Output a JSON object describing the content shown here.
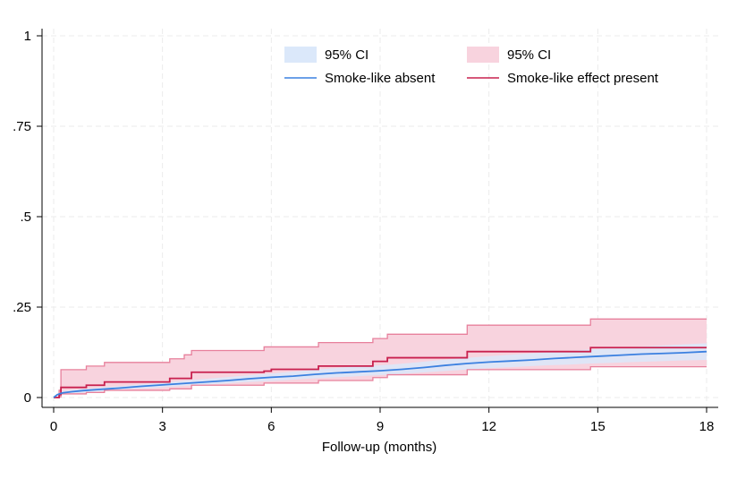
{
  "chart_data": {
    "type": "line",
    "title": "",
    "xlabel": "Follow-up (months)",
    "ylabel": "",
    "xlim": [
      0,
      18
    ],
    "ylim": [
      0,
      1
    ],
    "grid": true,
    "legend_position": "top-right",
    "x_ticks": [
      0,
      3,
      6,
      9,
      12,
      15,
      18
    ],
    "x_tick_labels": [
      "0",
      "3",
      "6",
      "9",
      "12",
      "15",
      "18"
    ],
    "y_ticks": [
      0,
      0.25,
      0.5,
      0.75,
      1
    ],
    "y_tick_labels": [
      "0",
      ".25",
      ".5",
      ".75",
      "1"
    ],
    "legend": [
      {
        "label": "95% CI",
        "kind": "band",
        "series": 0
      },
      {
        "label": "95% CI",
        "kind": "band",
        "series": 1
      },
      {
        "label": "Smoke-like absent",
        "kind": "line",
        "series": 0
      },
      {
        "label": "Smoke-like effect present",
        "kind": "line",
        "series": 1
      }
    ],
    "series": [
      {
        "name": "Smoke-like absent",
        "line_color": "#3b80e0",
        "band_color": "#dbe8fa",
        "points": [
          [
            0.0,
            0.0
          ],
          [
            0.1,
            0.008
          ],
          [
            0.25,
            0.013
          ],
          [
            0.5,
            0.016
          ],
          [
            0.8,
            0.019
          ],
          [
            1.2,
            0.022
          ],
          [
            1.8,
            0.026
          ],
          [
            2.4,
            0.031
          ],
          [
            3.0,
            0.035
          ],
          [
            3.6,
            0.039
          ],
          [
            4.2,
            0.043
          ],
          [
            4.8,
            0.047
          ],
          [
            5.4,
            0.052
          ],
          [
            6.0,
            0.056
          ],
          [
            6.6,
            0.059
          ],
          [
            7.2,
            0.064
          ],
          [
            7.8,
            0.068
          ],
          [
            8.4,
            0.071
          ],
          [
            9.0,
            0.074
          ],
          [
            9.6,
            0.078
          ],
          [
            10.2,
            0.083
          ],
          [
            10.8,
            0.089
          ],
          [
            11.4,
            0.094
          ],
          [
            12.0,
            0.098
          ],
          [
            12.6,
            0.101
          ],
          [
            13.2,
            0.104
          ],
          [
            13.8,
            0.108
          ],
          [
            14.4,
            0.111
          ],
          [
            15.0,
            0.114
          ],
          [
            15.6,
            0.117
          ],
          [
            16.2,
            0.12
          ],
          [
            16.8,
            0.122
          ],
          [
            17.4,
            0.124
          ],
          [
            18.0,
            0.127
          ]
        ],
        "ci_lower": [
          [
            0.0,
            0.0
          ],
          [
            0.2,
            0.009
          ],
          [
            0.6,
            0.012
          ],
          [
            1.0,
            0.015
          ],
          [
            1.6,
            0.019
          ],
          [
            2.2,
            0.024
          ],
          [
            2.8,
            0.027
          ],
          [
            3.4,
            0.031
          ],
          [
            4.0,
            0.035
          ],
          [
            4.6,
            0.038
          ],
          [
            5.2,
            0.042
          ],
          [
            5.8,
            0.045
          ],
          [
            6.4,
            0.048
          ],
          [
            7.0,
            0.052
          ],
          [
            7.6,
            0.055
          ],
          [
            8.2,
            0.058
          ],
          [
            8.8,
            0.061
          ],
          [
            9.4,
            0.064
          ],
          [
            10.0,
            0.068
          ],
          [
            10.6,
            0.072
          ],
          [
            11.2,
            0.076
          ],
          [
            11.8,
            0.08
          ],
          [
            12.4,
            0.083
          ],
          [
            13.0,
            0.086
          ],
          [
            13.6,
            0.089
          ],
          [
            14.2,
            0.091
          ],
          [
            14.8,
            0.094
          ],
          [
            15.4,
            0.096
          ],
          [
            16.0,
            0.098
          ],
          [
            16.6,
            0.1
          ],
          [
            17.2,
            0.102
          ],
          [
            18.0,
            0.104
          ]
        ],
        "ci_upper": [
          [
            0.0,
            0.0
          ],
          [
            0.2,
            0.018
          ],
          [
            0.6,
            0.022
          ],
          [
            1.0,
            0.025
          ],
          [
            1.6,
            0.03
          ],
          [
            2.2,
            0.035
          ],
          [
            2.8,
            0.04
          ],
          [
            3.4,
            0.045
          ],
          [
            4.0,
            0.05
          ],
          [
            4.6,
            0.055
          ],
          [
            5.2,
            0.06
          ],
          [
            5.8,
            0.065
          ],
          [
            6.4,
            0.07
          ],
          [
            7.0,
            0.075
          ],
          [
            7.6,
            0.08
          ],
          [
            8.2,
            0.085
          ],
          [
            8.8,
            0.088
          ],
          [
            9.4,
            0.092
          ],
          [
            10.0,
            0.097
          ],
          [
            10.6,
            0.103
          ],
          [
            11.2,
            0.108
          ],
          [
            11.8,
            0.113
          ],
          [
            12.4,
            0.117
          ],
          [
            13.0,
            0.121
          ],
          [
            13.6,
            0.125
          ],
          [
            14.2,
            0.129
          ],
          [
            14.8,
            0.133
          ],
          [
            15.4,
            0.137
          ],
          [
            16.0,
            0.14
          ],
          [
            16.6,
            0.143
          ],
          [
            17.2,
            0.146
          ],
          [
            18.0,
            0.15
          ]
        ]
      },
      {
        "name": "Smoke-like effect present",
        "line_color": "#c8204e",
        "band_color": "#f8d3de",
        "band_edge_color": "#e7809c",
        "steps": [
          [
            0.0,
            0.0
          ],
          [
            0.15,
            0.008
          ],
          [
            0.2,
            0.028
          ],
          [
            0.9,
            0.034
          ],
          [
            1.4,
            0.043
          ],
          [
            3.2,
            0.053
          ],
          [
            3.8,
            0.07
          ],
          [
            5.8,
            0.073
          ],
          [
            6.0,
            0.078
          ],
          [
            7.3,
            0.087
          ],
          [
            8.8,
            0.1
          ],
          [
            9.2,
            0.11
          ],
          [
            11.4,
            0.127
          ],
          [
            14.8,
            0.138
          ],
          [
            18.0,
            0.138
          ]
        ],
        "ci_upper_steps": [
          [
            0.0,
            0.0
          ],
          [
            0.15,
            0.02
          ],
          [
            0.2,
            0.077
          ],
          [
            0.9,
            0.087
          ],
          [
            1.4,
            0.097
          ],
          [
            3.2,
            0.107
          ],
          [
            3.6,
            0.118
          ],
          [
            3.8,
            0.13
          ],
          [
            5.8,
            0.14
          ],
          [
            7.3,
            0.152
          ],
          [
            8.8,
            0.163
          ],
          [
            9.2,
            0.175
          ],
          [
            11.4,
            0.2
          ],
          [
            14.8,
            0.217
          ],
          [
            18.0,
            0.217
          ]
        ],
        "ci_lower_steps": [
          [
            0.0,
            0.0
          ],
          [
            0.15,
            0.002
          ],
          [
            0.2,
            0.01
          ],
          [
            0.9,
            0.014
          ],
          [
            1.4,
            0.02
          ],
          [
            3.2,
            0.024
          ],
          [
            3.8,
            0.034
          ],
          [
            5.8,
            0.04
          ],
          [
            7.3,
            0.047
          ],
          [
            8.8,
            0.055
          ],
          [
            9.2,
            0.063
          ],
          [
            11.4,
            0.077
          ],
          [
            14.8,
            0.085
          ],
          [
            18.0,
            0.085
          ]
        ]
      }
    ]
  }
}
